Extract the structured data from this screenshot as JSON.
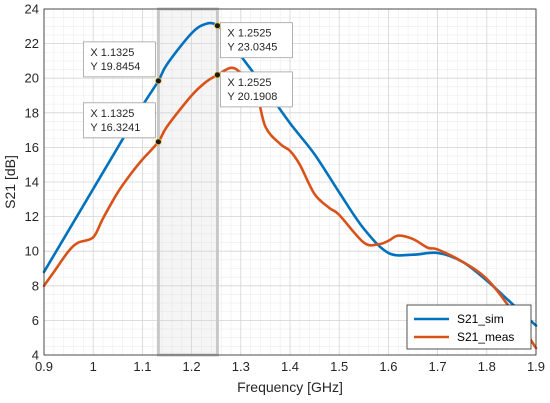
{
  "chart_data": {
    "type": "line",
    "xlabel": "Frequency [GHz]",
    "ylabel": "S21 [dB]",
    "xlim": [
      0.9,
      1.9
    ],
    "ylim": [
      4,
      24
    ],
    "x_ticks": [
      "0.9",
      "1",
      "1.1",
      "1.2",
      "1.3",
      "1.4",
      "1.5",
      "1.6",
      "1.7",
      "1.8",
      "1.9"
    ],
    "y_ticks": [
      "4",
      "6",
      "8",
      "10",
      "12",
      "14",
      "16",
      "18",
      "20",
      "22",
      "24"
    ],
    "grid": "major and minor",
    "legend_position": "bottom-right",
    "highlight_band": [
      1.1325,
      1.2525
    ],
    "series": [
      {
        "name": "S21_sim",
        "color": "#0072BD",
        "x": [
          0.9,
          0.95,
          1.0,
          1.05,
          1.1,
          1.1325,
          1.15,
          1.2,
          1.23,
          1.2525,
          1.28,
          1.3,
          1.35,
          1.4,
          1.45,
          1.5,
          1.55,
          1.6,
          1.65,
          1.7,
          1.75,
          1.8,
          1.85,
          1.9
        ],
        "values": [
          8.8,
          11.2,
          13.6,
          16.0,
          18.4,
          19.8454,
          20.8,
          22.6,
          23.15,
          23.0345,
          22.2,
          21.3,
          19.4,
          17.4,
          15.6,
          13.4,
          11.3,
          9.9,
          9.8,
          9.9,
          9.4,
          8.3,
          7.0,
          5.7
        ]
      },
      {
        "name": "S21_meas",
        "color": "#D95319",
        "x": [
          0.9,
          0.92,
          0.95,
          0.97,
          1.0,
          1.02,
          1.05,
          1.08,
          1.1,
          1.1325,
          1.15,
          1.2,
          1.23,
          1.2525,
          1.28,
          1.3,
          1.33,
          1.35,
          1.38,
          1.4,
          1.42,
          1.45,
          1.48,
          1.5,
          1.55,
          1.58,
          1.6,
          1.62,
          1.65,
          1.68,
          1.7,
          1.75,
          1.8,
          1.85,
          1.9
        ],
        "values": [
          8.0,
          8.8,
          10.0,
          10.5,
          10.8,
          11.9,
          13.4,
          14.6,
          15.3,
          16.3241,
          17.2,
          19.0,
          19.8,
          20.1908,
          20.6,
          20.3,
          19.3,
          17.2,
          16.2,
          15.8,
          15.0,
          13.3,
          12.5,
          12.1,
          10.5,
          10.4,
          10.6,
          10.9,
          10.7,
          10.2,
          10.1,
          9.4,
          8.4,
          6.6,
          4.4
        ]
      }
    ],
    "datatips": [
      {
        "series": "S21_sim",
        "x_text": "X 1.1325",
        "y_text": "Y 19.8454",
        "x": 1.1325,
        "y": 19.8454,
        "side": "left"
      },
      {
        "series": "S21_sim",
        "x_text": "X 1.2525",
        "y_text": "Y 23.0345",
        "x": 1.2525,
        "y": 23.0345,
        "side": "right"
      },
      {
        "series": "S21_meas",
        "x_text": "X 1.1325",
        "y_text": "Y 16.3241",
        "x": 1.1325,
        "y": 16.3241,
        "side": "left"
      },
      {
        "series": "S21_meas",
        "x_text": "X 1.2525",
        "y_text": "Y 20.1908",
        "x": 1.2525,
        "y": 20.1908,
        "side": "right"
      }
    ]
  }
}
